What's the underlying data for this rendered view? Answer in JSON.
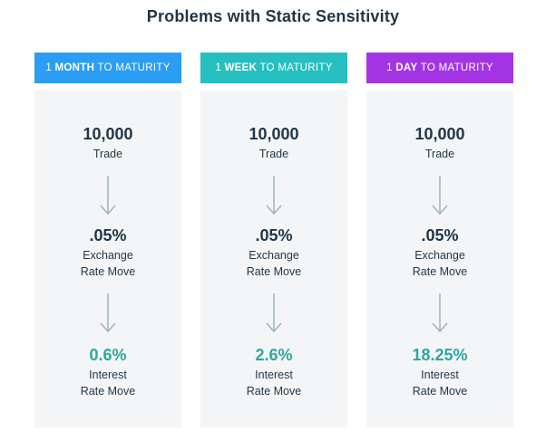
{
  "title": "Problems with Static Sensitivity",
  "colors": {
    "month": "#2a9df4",
    "week": "#26bfbf",
    "day": "#a234e6",
    "accent": "#2aa8a0",
    "text": "#1f3548",
    "arrow": "#9eb3bd"
  },
  "columns": [
    {
      "prefix": "1 ",
      "unit": "MONTH",
      "suffix": " TO MATURITY",
      "trade_value": "10,000",
      "trade_label": "Trade",
      "fx_value": ".05%",
      "fx_label_1": "Exchange",
      "fx_label_2": "Rate Move",
      "ir_value": "0.6%",
      "ir_label_1": "Interest",
      "ir_label_2": "Rate Move"
    },
    {
      "prefix": "1 ",
      "unit": "WEEK",
      "suffix": " TO MATURITY",
      "trade_value": "10,000",
      "trade_label": "Trade",
      "fx_value": ".05%",
      "fx_label_1": "Exchange",
      "fx_label_2": "Rate Move",
      "ir_value": "2.6%",
      "ir_label_1": "Interest",
      "ir_label_2": "Rate Move"
    },
    {
      "prefix": "1 ",
      "unit": "DAY",
      "suffix": " TO MATURITY",
      "trade_value": "10,000",
      "trade_label": "Trade",
      "fx_value": ".05%",
      "fx_label_1": "Exchange",
      "fx_label_2": "Rate Move",
      "ir_value": "18.25%",
      "ir_label_1": "Interest",
      "ir_label_2": "Rate Move"
    }
  ]
}
